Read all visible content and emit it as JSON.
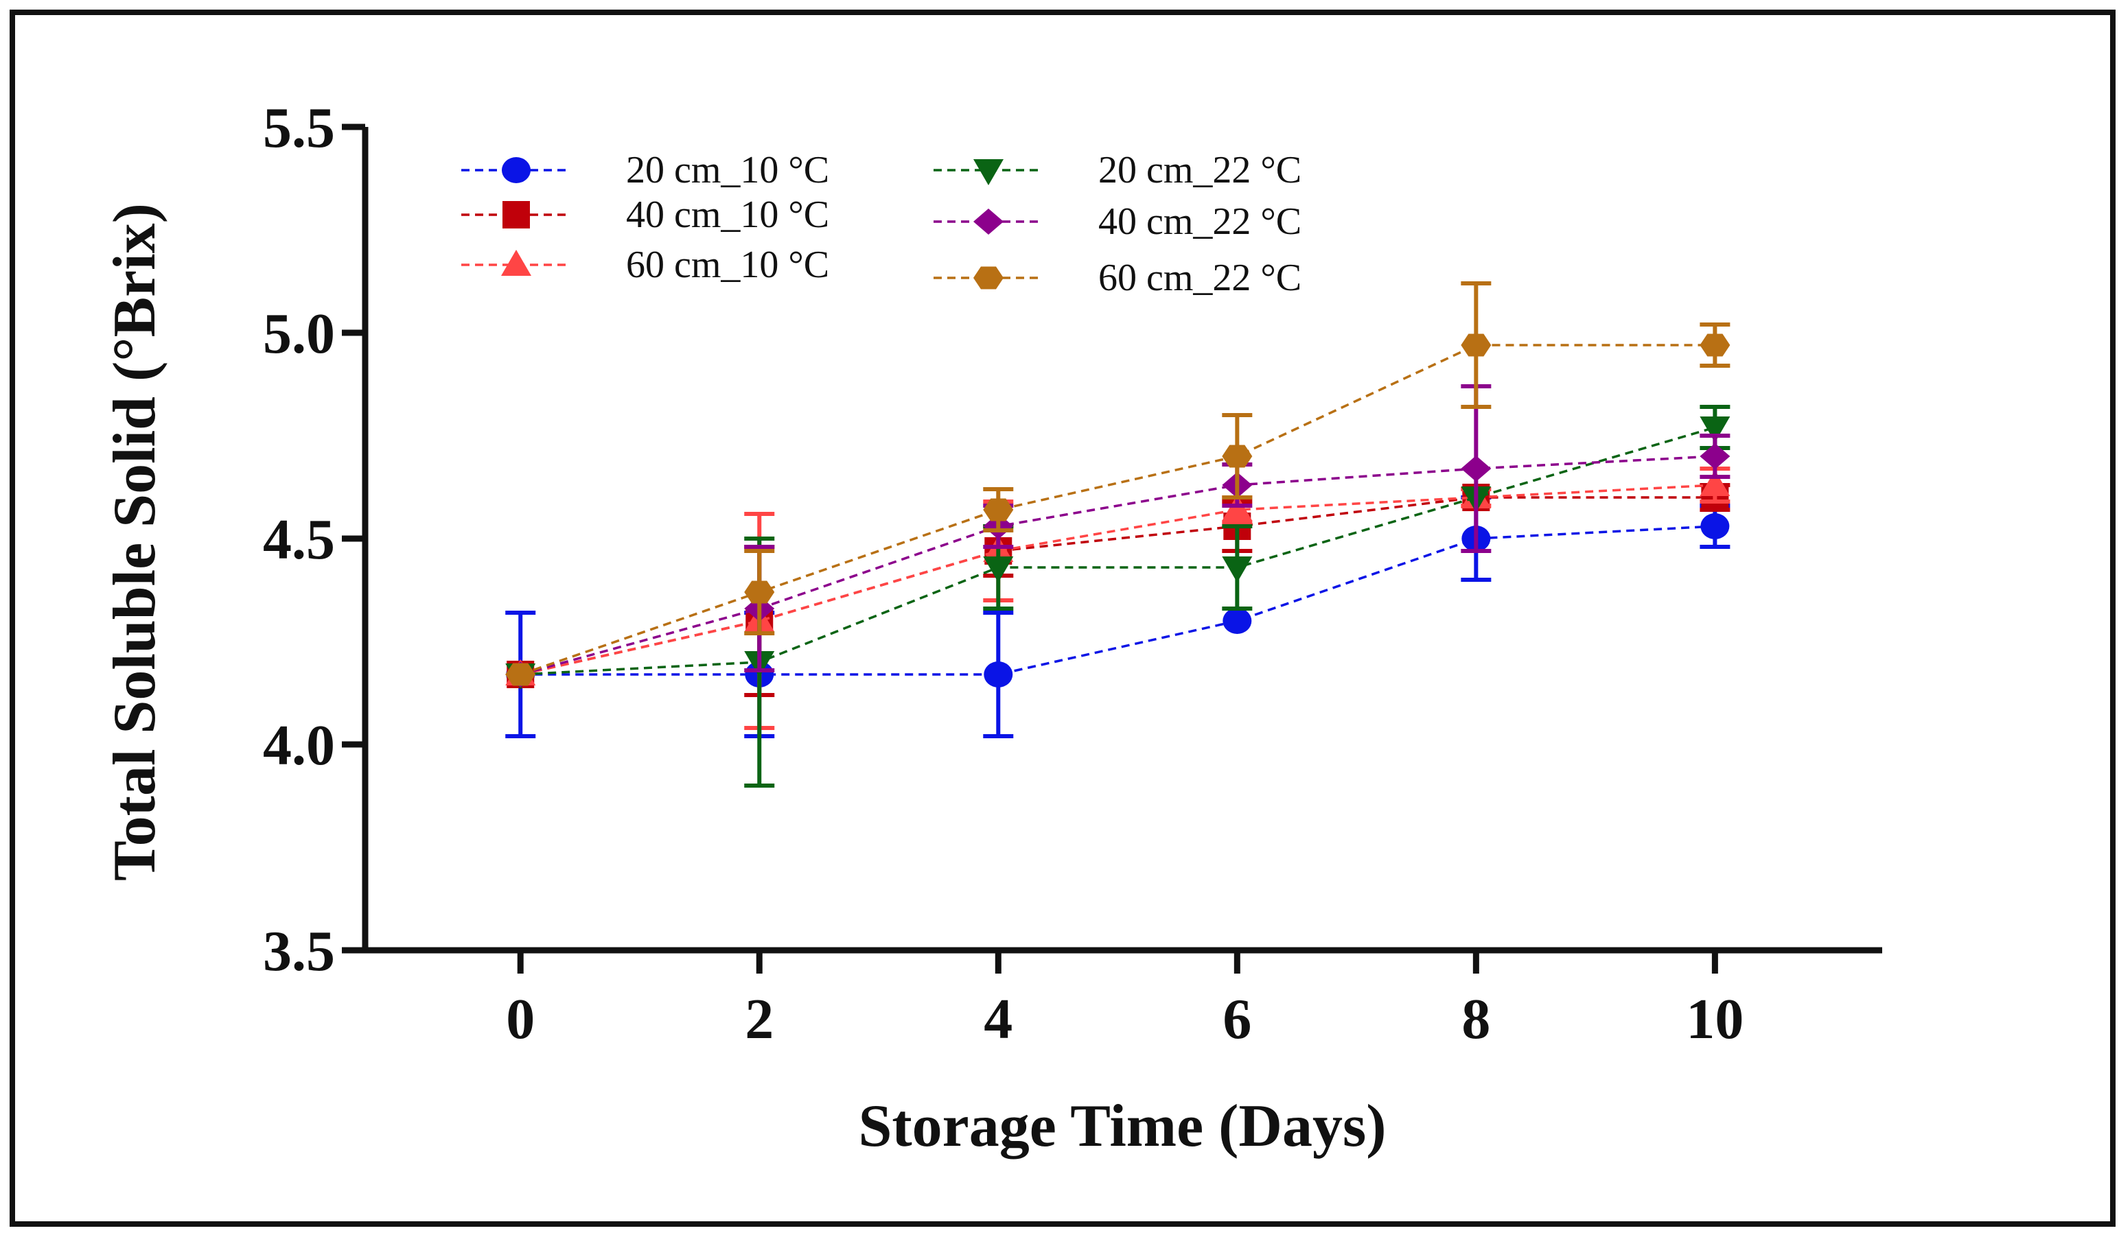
{
  "chart_data": {
    "type": "line",
    "title": "",
    "xlabel": "Storage Time (Days)",
    "ylabel": "Total Soluble Solid (°Brix)",
    "x": [
      0,
      2,
      4,
      6,
      8,
      10
    ],
    "x_ticks": [
      "0",
      "2",
      "4",
      "6",
      "8",
      "10"
    ],
    "y_ticks": [
      "3.5",
      "4.0",
      "4.5",
      "5.0",
      "5.5"
    ],
    "xlim": [
      -1.3,
      11.4
    ],
    "ylim": [
      3.5,
      5.5
    ],
    "legend_position": "top-left",
    "series": [
      {
        "name": "20 cm_10 °C",
        "color": "#0a14e6",
        "marker": "circle",
        "values": [
          4.17,
          4.17,
          4.17,
          4.3,
          4.5,
          4.53
        ],
        "errors": [
          0.15,
          0.15,
          0.15,
          0.0,
          0.1,
          0.05
        ]
      },
      {
        "name": "40 cm_10 °C",
        "color": "#c0000a",
        "marker": "square",
        "values": [
          4.17,
          4.3,
          4.47,
          4.53,
          4.6,
          4.6
        ],
        "errors": [
          0.0,
          0.18,
          0.06,
          0.06,
          0.0,
          0.03
        ]
      },
      {
        "name": "60 cm_10 °C",
        "color": "#ff4545",
        "marker": "triangle-up",
        "values": [
          4.17,
          4.3,
          4.47,
          4.57,
          4.6,
          4.63
        ],
        "errors": [
          0.0,
          0.26,
          0.12,
          0.03,
          0.02,
          0.04
        ]
      },
      {
        "name": "20 cm_22 °C",
        "color": "#0a6414",
        "marker": "triangle-down",
        "values": [
          4.17,
          4.2,
          4.43,
          4.43,
          4.6,
          4.77
        ],
        "errors": [
          0.0,
          0.3,
          0.1,
          0.1,
          0.0,
          0.05
        ]
      },
      {
        "name": "40 cm_22 °C",
        "color": "#8c008c",
        "marker": "diamond",
        "values": [
          4.17,
          4.33,
          4.53,
          4.63,
          4.67,
          4.7
        ],
        "errors": [
          0.0,
          0.15,
          0.05,
          0.05,
          0.2,
          0.05
        ]
      },
      {
        "name": "60 cm_22 °C",
        "color": "#b87014",
        "marker": "hexagon",
        "values": [
          4.17,
          4.37,
          4.57,
          4.7,
          4.97,
          4.97
        ],
        "errors": [
          0.0,
          0.1,
          0.05,
          0.1,
          0.15,
          0.05
        ]
      }
    ]
  }
}
